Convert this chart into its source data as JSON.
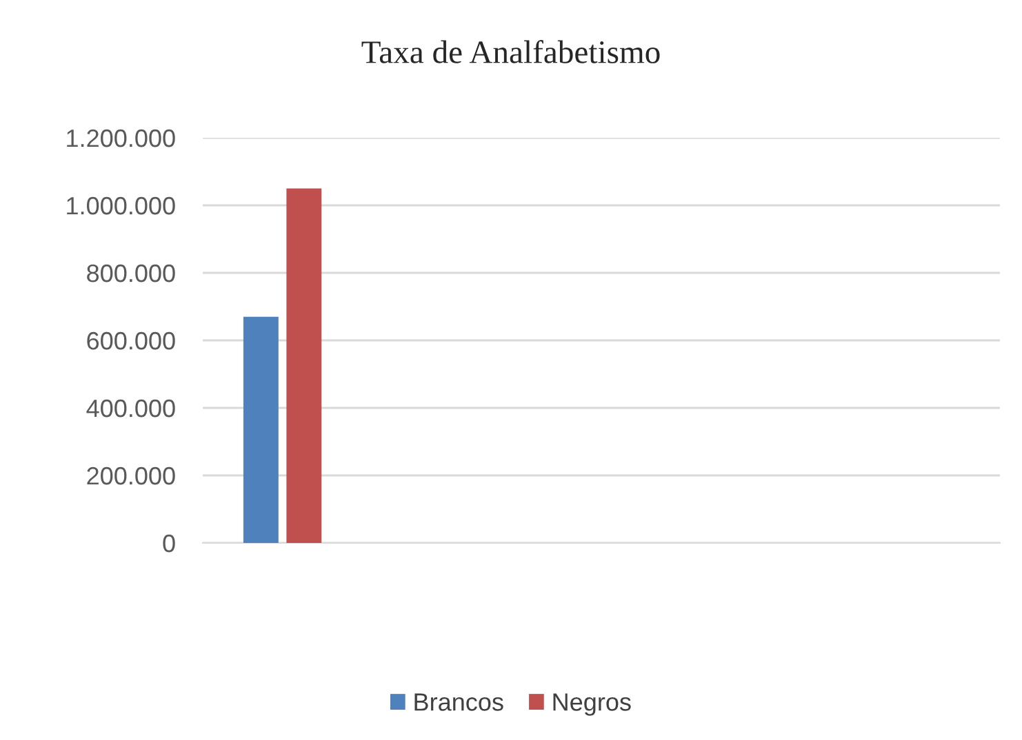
{
  "chart_data": {
    "type": "bar",
    "title": "Taxa de Analfabetismo",
    "categories": [
      null,
      null,
      null,
      null,
      null
    ],
    "series": [
      {
        "name": "Brancos",
        "color": "#4f81bd",
        "values": [
          670000,
          null,
          null,
          null,
          null
        ]
      },
      {
        "name": "Negros",
        "color": "#c0504d",
        "values": [
          1050000,
          null,
          null,
          null,
          null
        ]
      }
    ],
    "ylim": [
      0,
      1200000
    ],
    "yticks": [
      0,
      {
        "value": 200000,
        "label": "200.000"
      },
      {
        "value": 400000,
        "label": "400.000"
      },
      {
        "value": 600000,
        "label": "600.000"
      },
      {
        "value": 800000,
        "label": "800.000"
      },
      {
        "value": 1000000,
        "label": "1.000.000"
      },
      {
        "value": 1200000,
        "label": "1.200.000"
      }
    ],
    "grid": "y",
    "legend": "bottom"
  }
}
